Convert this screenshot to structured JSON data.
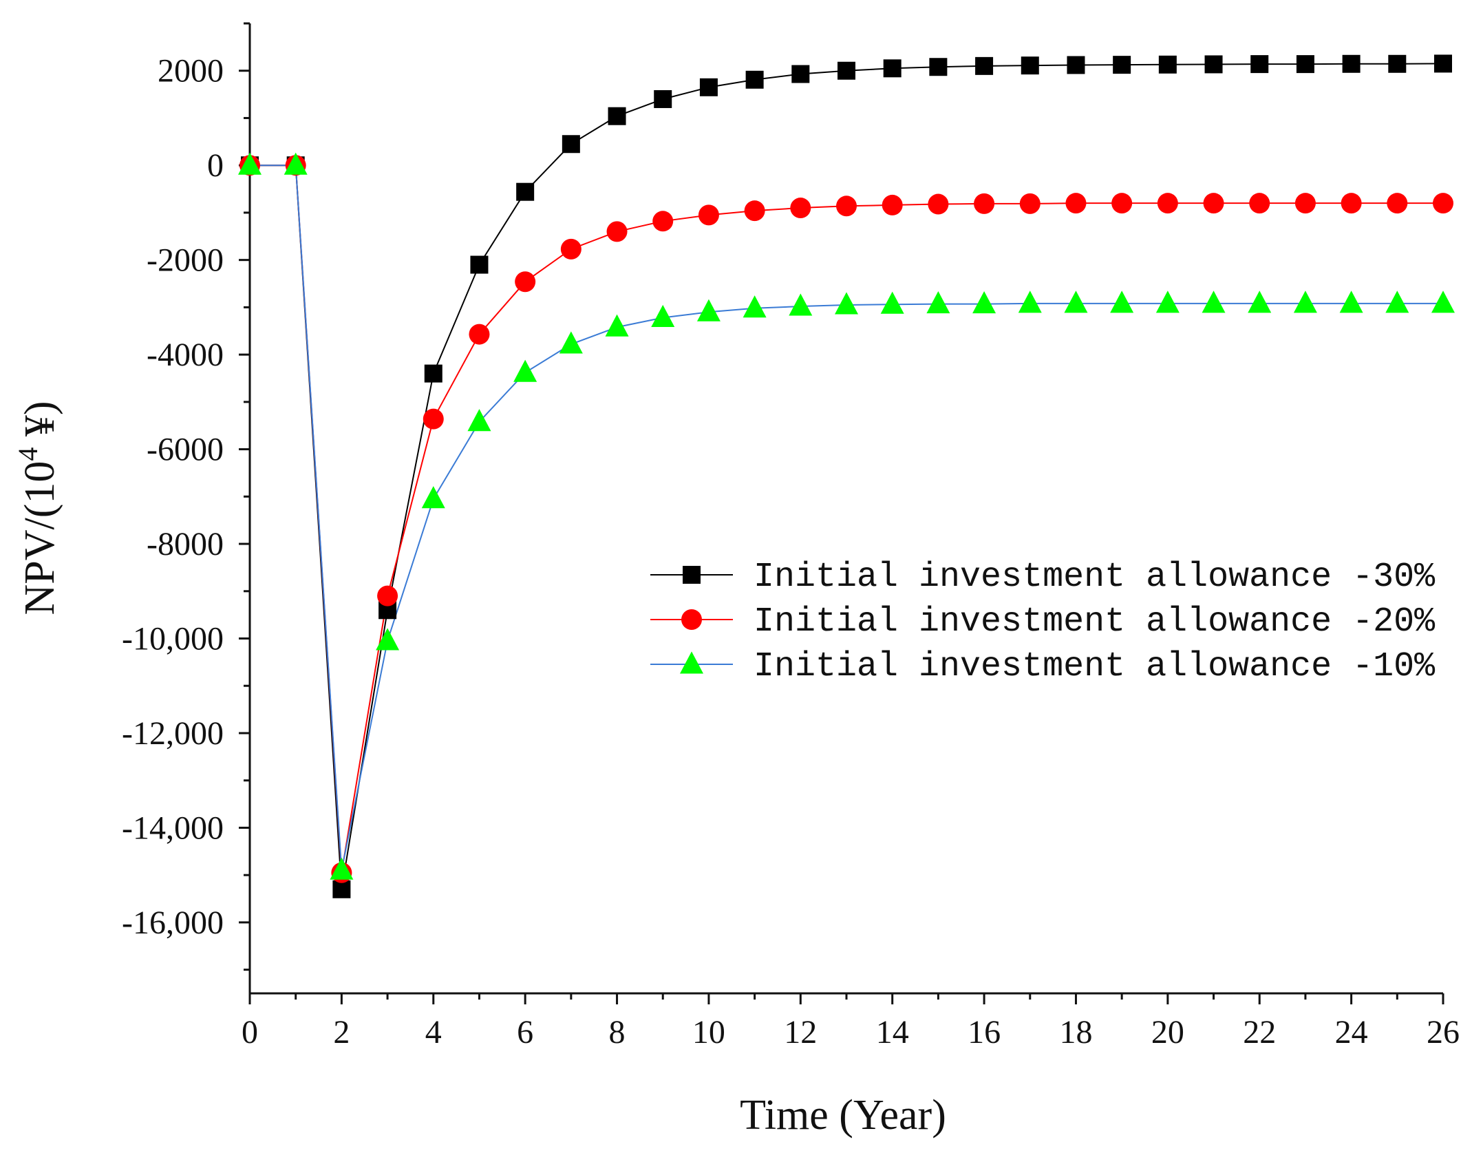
{
  "chart_data": {
    "type": "line",
    "title": "",
    "xlabel": "Time (Year)",
    "ylabel": "NPV/(10",
    "ylabel_exponent": "4",
    "ylabel_unit": " ¥)",
    "xlim": [
      0,
      26
    ],
    "ylim": [
      -17500,
      3000
    ],
    "x_ticks": [
      0,
      2,
      4,
      6,
      8,
      10,
      12,
      14,
      16,
      18,
      20,
      22,
      24,
      26
    ],
    "x_tick_labels": [
      "0",
      "2",
      "4",
      "6",
      "8",
      "10",
      "12",
      "14",
      "16",
      "18",
      "20",
      "22",
      "24",
      "26"
    ],
    "y_ticks": [
      2000,
      0,
      -2000,
      -4000,
      -6000,
      -8000,
      -10000,
      -12000,
      -14000,
      -16000
    ],
    "y_tick_labels": [
      "2000",
      "0",
      "-2000",
      "-4000",
      "-6000",
      "-8000",
      "-10,000",
      "-12,000",
      "-14,000",
      "-16,000"
    ],
    "grid": false,
    "legend_position": "right-center",
    "x": [
      0,
      1,
      2,
      3,
      4,
      5,
      6,
      7,
      8,
      9,
      10,
      11,
      12,
      13,
      14,
      15,
      16,
      17,
      18,
      19,
      20,
      21,
      22,
      23,
      24,
      25,
      26
    ],
    "series": [
      {
        "name": "Initial investment allowance -30%",
        "color": "#000000",
        "marker": "square",
        "values": [
          0,
          0,
          -15300,
          -9400,
          -4400,
          -2100,
          -560,
          450,
          1040,
          1400,
          1650,
          1810,
          1930,
          2000,
          2050,
          2080,
          2100,
          2110,
          2120,
          2125,
          2130,
          2135,
          2140,
          2140,
          2145,
          2145,
          2150
        ]
      },
      {
        "name": "Initial investment allowance -20%",
        "color": "#ff0000",
        "marker": "circle",
        "values": [
          0,
          0,
          -14950,
          -9100,
          -5360,
          -3570,
          -2460,
          -1770,
          -1400,
          -1180,
          -1050,
          -960,
          -900,
          -860,
          -840,
          -820,
          -810,
          -810,
          -800,
          -800,
          -800,
          -800,
          -800,
          -800,
          -800,
          -800,
          -800
        ]
      },
      {
        "name": "Initial investment allowance -10%",
        "color": "#00ff00",
        "line_color": "#3a7bd5",
        "marker": "triangle",
        "values": [
          0,
          0,
          -14900,
          -10050,
          -7050,
          -5420,
          -4380,
          -3780,
          -3420,
          -3220,
          -3100,
          -3020,
          -2980,
          -2950,
          -2940,
          -2930,
          -2930,
          -2920,
          -2920,
          -2920,
          -2920,
          -2920,
          -2920,
          -2920,
          -2920,
          -2920,
          -2920
        ]
      }
    ]
  }
}
